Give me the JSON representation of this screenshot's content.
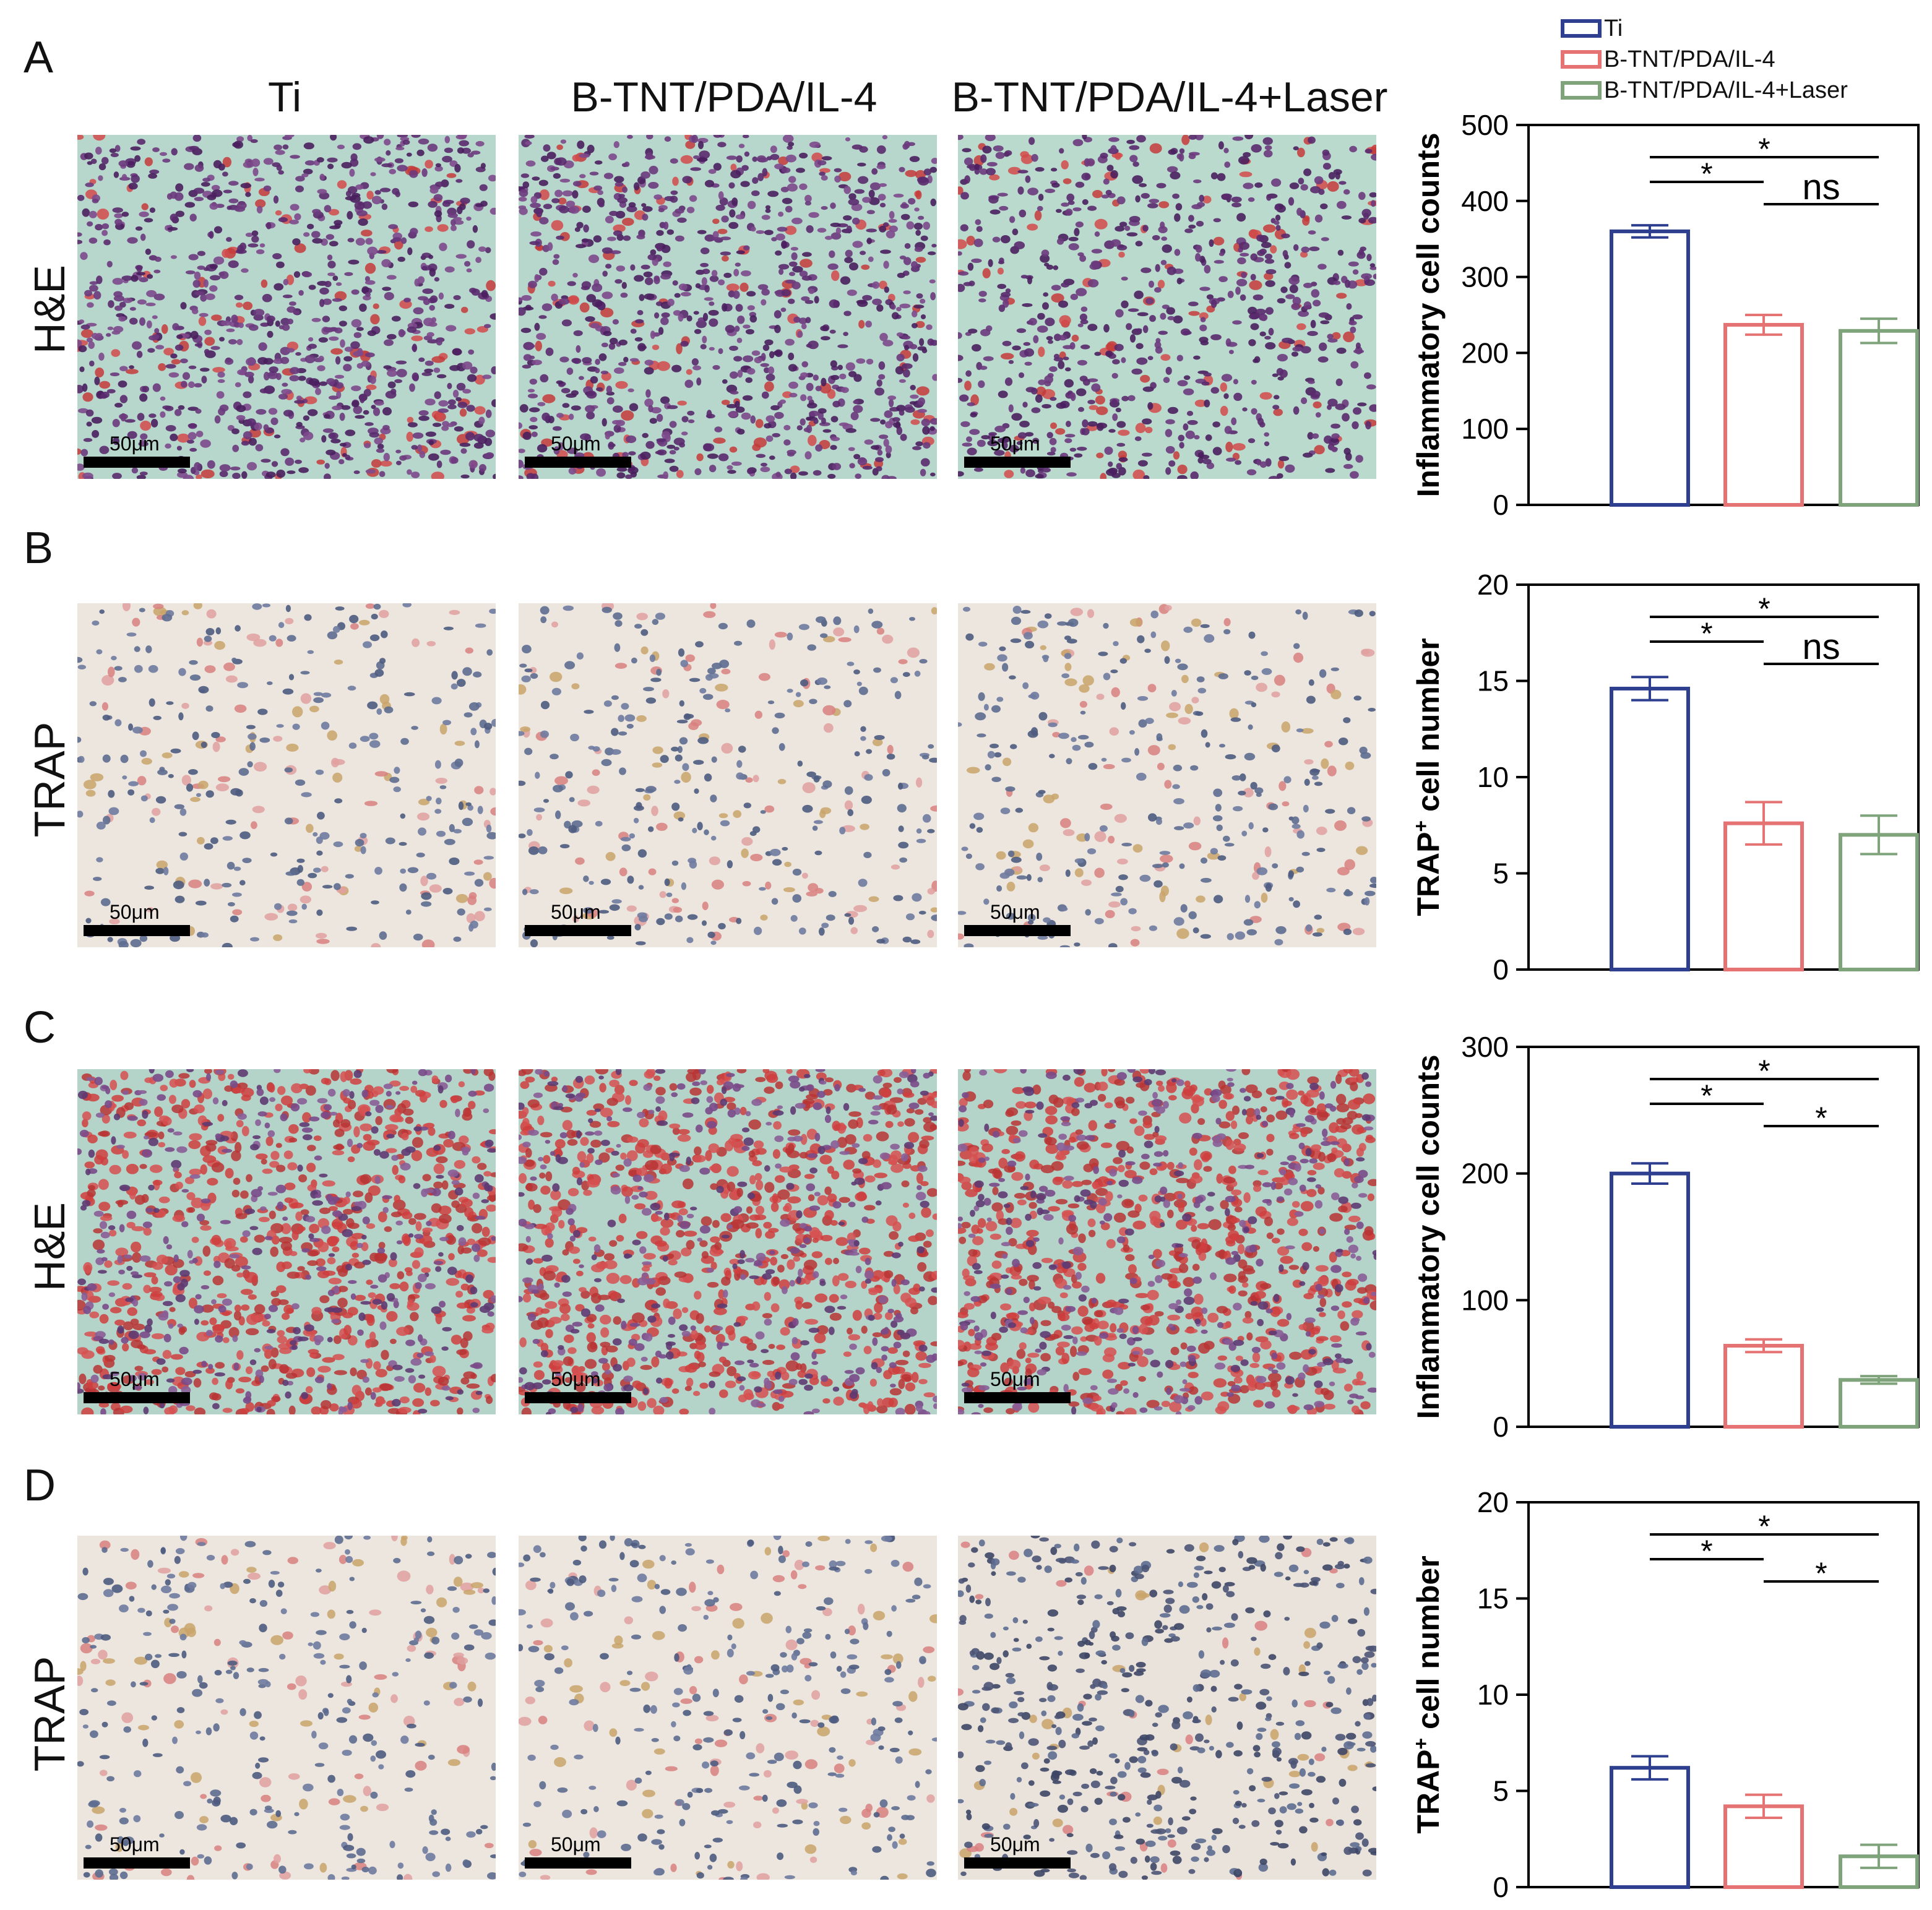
{
  "figure": {
    "panel_letters": [
      "A",
      "B",
      "C",
      "D"
    ],
    "column_titles": [
      "Ti",
      "B-TNT/PDA/IL-4",
      "B-TNT/PDA/IL-4+Laser"
    ],
    "row_labels": [
      "H&E",
      "TRAP",
      "H&E",
      "TRAP"
    ],
    "scale_label": "50μm",
    "legend": [
      {
        "name": "Ti",
        "color": "#2e3f8f"
      },
      {
        "name": "B-TNT/PDA/IL-4",
        "color": "#e57373"
      },
      {
        "name": "B-TNT/PDA/IL-4+Laser",
        "color": "#7fa37b"
      }
    ],
    "micrograph_styles": [
      "he-dense",
      "he-dense",
      "he-mixed",
      "trap",
      "trap",
      "trap",
      "he-red",
      "he-red",
      "he-red",
      "trap",
      "trap",
      "trap-dense"
    ]
  },
  "chart_data": [
    {
      "type": "bar",
      "panel": "A",
      "categories": [
        "Ti",
        "B-TNT/PDA/IL-4",
        "B-TNT/PDA/IL-4+Laser"
      ],
      "values": [
        360,
        237,
        229
      ],
      "errors": [
        8,
        13,
        16
      ],
      "ylabel": "Inflammatory cell counts",
      "ylim": [
        0,
        500
      ],
      "yticks": [
        "0",
        "100",
        "200",
        "300",
        "400",
        "500"
      ],
      "tick_values": [
        0,
        100,
        200,
        300,
        400,
        500
      ],
      "comparisons": [
        {
          "from": 0,
          "to": 2,
          "label": "*"
        },
        {
          "from": 0,
          "to": 1,
          "label": "*"
        },
        {
          "from": 1,
          "to": 2,
          "label": "ns"
        }
      ]
    },
    {
      "type": "bar",
      "panel": "B",
      "categories": [
        "Ti",
        "B-TNT/PDA/IL-4",
        "B-TNT/PDA/IL-4+Laser"
      ],
      "values": [
        14.6,
        7.6,
        7.0
      ],
      "errors": [
        0.6,
        1.1,
        1.0
      ],
      "ylabel_main": "TRAP",
      "ylabel_sup": "+",
      "ylabel_rest": " cell number",
      "ylim": [
        0,
        20
      ],
      "yticks": [
        "0",
        "5",
        "10",
        "15",
        "20"
      ],
      "tick_values": [
        0,
        5,
        10,
        15,
        20
      ],
      "comparisons": [
        {
          "from": 0,
          "to": 2,
          "label": "*"
        },
        {
          "from": 0,
          "to": 1,
          "label": "*"
        },
        {
          "from": 1,
          "to": 2,
          "label": "ns"
        }
      ]
    },
    {
      "type": "bar",
      "panel": "C",
      "categories": [
        "Ti",
        "B-TNT/PDA/IL-4",
        "B-TNT/PDA/IL-4+Laser"
      ],
      "values": [
        200,
        64,
        37
      ],
      "errors": [
        8,
        5,
        3
      ],
      "ylabel": "Inflammatory cell counts",
      "ylim": [
        0,
        300
      ],
      "yticks": [
        "0",
        "100",
        "200",
        "300"
      ],
      "tick_values": [
        0,
        100,
        200,
        300
      ],
      "comparisons": [
        {
          "from": 0,
          "to": 2,
          "label": "*"
        },
        {
          "from": 0,
          "to": 1,
          "label": "*"
        },
        {
          "from": 1,
          "to": 2,
          "label": "*"
        }
      ]
    },
    {
      "type": "bar",
      "panel": "D",
      "categories": [
        "Ti",
        "B-TNT/PDA/IL-4",
        "B-TNT/PDA/IL-4+Laser"
      ],
      "values": [
        6.2,
        4.2,
        1.6
      ],
      "errors": [
        0.6,
        0.6,
        0.6
      ],
      "ylabel_main": "TRAP",
      "ylabel_sup": "+",
      "ylabel_rest": " cell number",
      "ylim": [
        0,
        20
      ],
      "yticks": [
        "0",
        "5",
        "10",
        "15",
        "20"
      ],
      "tick_values": [
        0,
        5,
        10,
        15,
        20
      ],
      "comparisons": [
        {
          "from": 0,
          "to": 2,
          "label": "*"
        },
        {
          "from": 0,
          "to": 1,
          "label": "*"
        },
        {
          "from": 1,
          "to": 2,
          "label": "*"
        }
      ]
    }
  ]
}
